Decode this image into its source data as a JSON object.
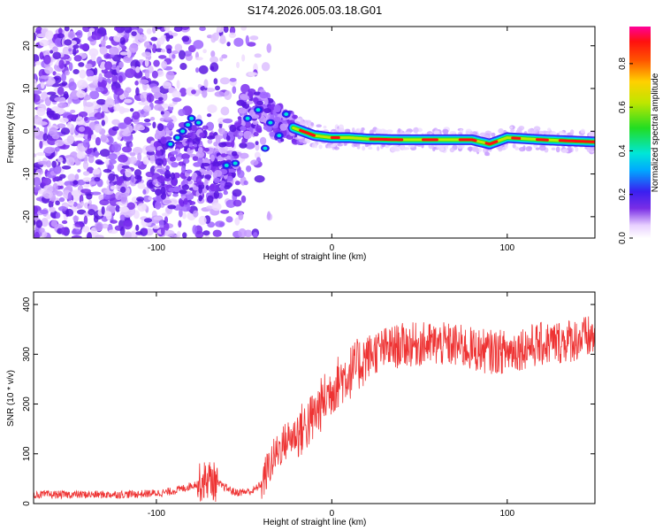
{
  "title": "S174.2026.005.03.18.G01",
  "chart_data": [
    {
      "type": "heatmap",
      "xlabel": "Height of straight line (km)",
      "ylabel": "Frequency (Hz)",
      "xlim": [
        -170,
        150
      ],
      "ylim": [
        -25,
        24.5
      ],
      "xticks": [
        -100,
        0,
        100
      ],
      "yticks": [
        20,
        10,
        0,
        -10,
        -20
      ],
      "colorbar": {
        "label": "Normalized spectral amplitude",
        "range": [
          0,
          0.97
        ],
        "ticks": [
          0.0,
          0.2,
          0.4,
          0.6,
          0.8
        ]
      },
      "ridge": {
        "x": [
          -60,
          -50,
          -40,
          -30,
          -20,
          -10,
          0,
          10,
          20,
          40,
          60,
          80,
          90,
          100,
          120,
          150
        ],
        "y": [
          -8,
          3,
          5,
          2,
          0.5,
          -1,
          -1.5,
          -1.5,
          -1.8,
          -2,
          -2,
          -2,
          -3,
          -1.5,
          -2,
          -2.5
        ]
      }
    },
    {
      "type": "line",
      "xlabel": "Height of straight line (km)",
      "ylabel": "SNR (10 * v/v)",
      "xlim": [
        -170,
        150
      ],
      "ylim": [
        0,
        425
      ],
      "xticks": [
        -100,
        0,
        100
      ],
      "yticks": [
        0,
        100,
        200,
        300,
        400
      ],
      "series": [
        {
          "name": "SNR",
          "color": "#ee3333",
          "x": [
            -170,
            -150,
            -130,
            -110,
            -95,
            -85,
            -75,
            -70,
            -65,
            -55,
            -45,
            -40,
            -35,
            -30,
            -25,
            -20,
            -15,
            -10,
            -5,
            0,
            5,
            10,
            15,
            20,
            25,
            30,
            40,
            50,
            60,
            70,
            80,
            90,
            100,
            110,
            120,
            130,
            140,
            150
          ],
          "y": [
            18,
            18,
            18,
            19,
            22,
            30,
            42,
            50,
            40,
            22,
            25,
            40,
            80,
            110,
            130,
            140,
            155,
            175,
            205,
            230,
            250,
            262,
            278,
            295,
            305,
            310,
            318,
            320,
            320,
            318,
            310,
            305,
            305,
            315,
            320,
            325,
            330,
            335
          ]
        }
      ]
    }
  ]
}
